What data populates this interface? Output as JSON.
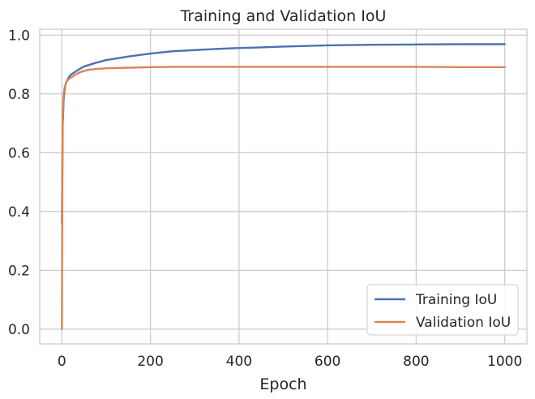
{
  "chart_data": {
    "type": "line",
    "title": "Training and Validation IoU",
    "xlabel": "Epoch",
    "ylabel": "",
    "xlim": [
      -50,
      1050
    ],
    "ylim": [
      -0.05,
      1.02
    ],
    "xticks": [
      0,
      200,
      400,
      600,
      800,
      1000
    ],
    "yticks": [
      0.0,
      0.2,
      0.4,
      0.6,
      0.8,
      1.0
    ],
    "xtick_labels": [
      "0",
      "200",
      "400",
      "600",
      "800",
      "1000"
    ],
    "ytick_labels": [
      "0.0",
      "0.2",
      "0.4",
      "0.6",
      "0.8",
      "1.0"
    ],
    "grid": true,
    "legend_position": "lower-right",
    "series": [
      {
        "name": "Training IoU",
        "color": "#4c72b0",
        "x": [
          0,
          2,
          4,
          6,
          8,
          10,
          15,
          20,
          30,
          40,
          50,
          75,
          100,
          125,
          150,
          200,
          250,
          300,
          350,
          400,
          450,
          500,
          600,
          700,
          800,
          900,
          1000
        ],
        "y": [
          0.36,
          0.7,
          0.78,
          0.81,
          0.83,
          0.84,
          0.855,
          0.865,
          0.875,
          0.885,
          0.893,
          0.905,
          0.915,
          0.921,
          0.927,
          0.937,
          0.945,
          0.949,
          0.953,
          0.956,
          0.958,
          0.961,
          0.965,
          0.967,
          0.968,
          0.969,
          0.969
        ]
      },
      {
        "name": "Validation IoU",
        "color": "#dd8452",
        "x": [
          0,
          1,
          2,
          4,
          6,
          8,
          10,
          15,
          20,
          30,
          40,
          50,
          60,
          80,
          100,
          120,
          150,
          200,
          250,
          300,
          400,
          500,
          600,
          700,
          800,
          900,
          1000
        ],
        "y": [
          0.0,
          0.52,
          0.73,
          0.8,
          0.82,
          0.83,
          0.84,
          0.85,
          0.855,
          0.865,
          0.873,
          0.878,
          0.882,
          0.885,
          0.887,
          0.888,
          0.889,
          0.891,
          0.892,
          0.892,
          0.892,
          0.892,
          0.892,
          0.892,
          0.892,
          0.891,
          0.891
        ]
      }
    ]
  }
}
